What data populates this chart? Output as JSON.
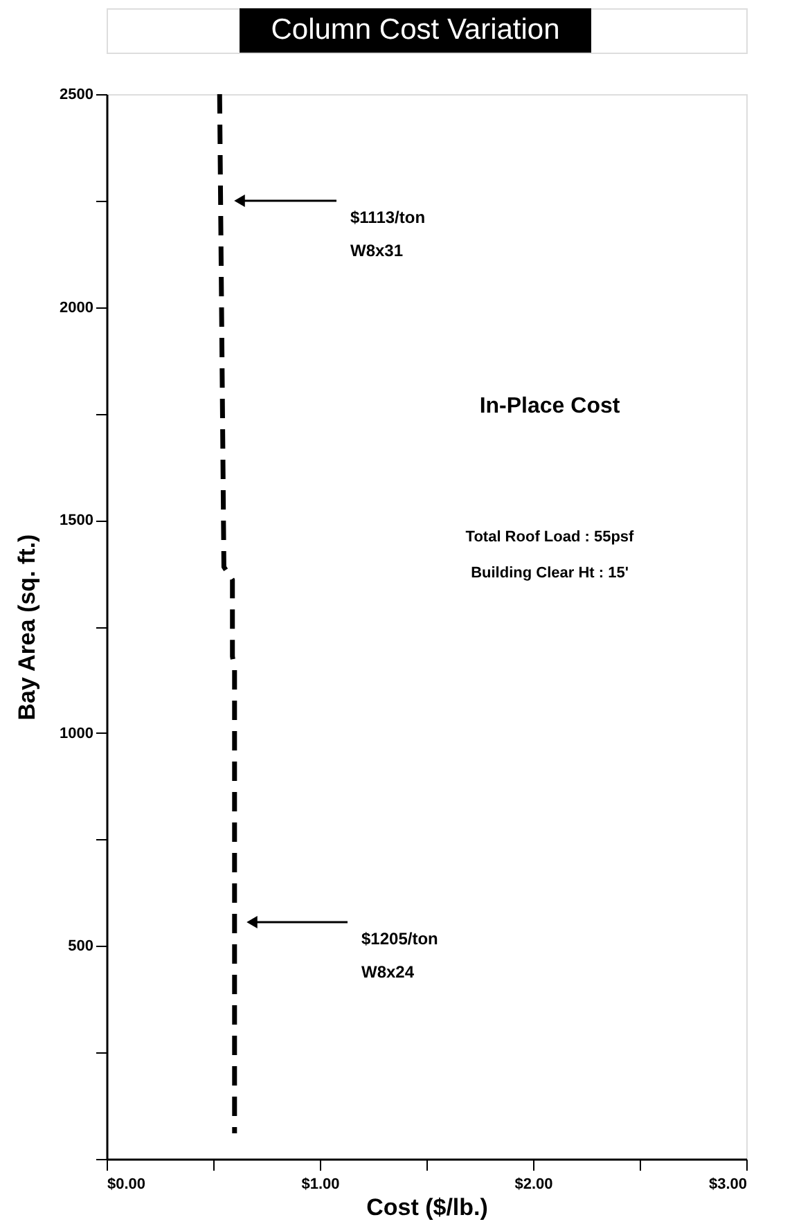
{
  "chart_data": {
    "type": "line",
    "title": "Column Cost Variation",
    "xlabel": "Cost  ($/lb.)",
    "ylabel": "Bay Area  (sq. ft.)",
    "x": [
      0.53,
      0.55,
      0.59,
      0.59,
      0.6,
      0.6
    ],
    "series": [
      {
        "color": "#000000",
        "values": [
          2500,
          1390,
          1360,
          1180,
          1150,
          60
        ]
      }
    ],
    "line_style": "dashed",
    "marker": "none",
    "grid": false,
    "xlim": [
      0,
      3
    ],
    "xticks": [
      {
        "value": 0,
        "label": "$0.00"
      },
      {
        "value": 0.5,
        "label": null
      },
      {
        "value": 1,
        "label": "$1.00"
      },
      {
        "value": 1.5,
        "label": null
      },
      {
        "value": 2,
        "label": "$2.00"
      },
      {
        "value": 2.5,
        "label": null
      },
      {
        "value": 3,
        "label": "$3.00"
      }
    ],
    "ylim": [
      0,
      2500
    ],
    "yticks": [
      {
        "value": 0,
        "label": null
      },
      {
        "value": 250,
        "label": null
      },
      500,
      {
        "value": 750,
        "label": null
      },
      1000,
      {
        "value": 1250,
        "label": null
      },
      1500,
      {
        "value": 1750,
        "label": null
      },
      2000,
      {
        "value": 2250,
        "label": null
      },
      2500
    ],
    "annotations": [
      "$1113/ton\nW8x31",
      "$1205/ton\nW8x24",
      "In-Place Cost",
      "Total Roof Load : 55psf",
      "Building Clear Ht : 15'"
    ]
  }
}
